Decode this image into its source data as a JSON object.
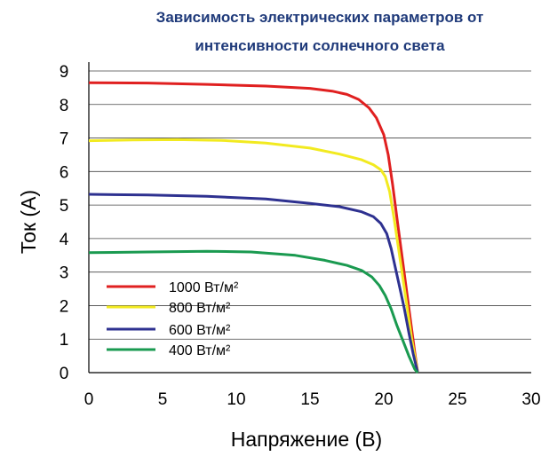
{
  "chart_data": {
    "type": "line",
    "title": [
      "Зависимость электрических параметров от",
      "интенсивности солнечного света"
    ],
    "xlabel": "Напряжение (В)",
    "ylabel": "Ток (А)",
    "xlim": [
      0,
      30
    ],
    "ylim": [
      0,
      9
    ],
    "x_ticks": [
      0,
      5,
      10,
      15,
      20,
      25,
      30
    ],
    "y_ticks": [
      0,
      1,
      2,
      3,
      4,
      5,
      6,
      7,
      8,
      9
    ],
    "grid": "horizontal",
    "legend_position": "bottom-left",
    "series": [
      {
        "name": "1000 Вт/м²",
        "color": "#e02020",
        "points": [
          [
            0,
            8.65
          ],
          [
            4,
            8.64
          ],
          [
            8,
            8.6
          ],
          [
            12,
            8.55
          ],
          [
            15,
            8.48
          ],
          [
            16.5,
            8.4
          ],
          [
            17.5,
            8.3
          ],
          [
            18.3,
            8.15
          ],
          [
            19,
            7.9
          ],
          [
            19.5,
            7.6
          ],
          [
            20,
            7.1
          ],
          [
            20.3,
            6.5
          ],
          [
            20.6,
            5.6
          ],
          [
            20.9,
            4.6
          ],
          [
            21.2,
            3.6
          ],
          [
            21.5,
            2.6
          ],
          [
            21.8,
            1.6
          ],
          [
            22.1,
            0.6
          ],
          [
            22.3,
            0
          ]
        ]
      },
      {
        "name": "800 Вт/м²",
        "color": "#f2ea20",
        "points": [
          [
            0,
            6.92
          ],
          [
            3,
            6.94
          ],
          [
            6,
            6.95
          ],
          [
            9,
            6.93
          ],
          [
            12,
            6.85
          ],
          [
            15,
            6.7
          ],
          [
            17,
            6.52
          ],
          [
            18.5,
            6.35
          ],
          [
            19.3,
            6.2
          ],
          [
            19.8,
            6.05
          ],
          [
            20.1,
            5.85
          ],
          [
            20.4,
            5.4
          ],
          [
            20.7,
            4.6
          ],
          [
            21,
            3.7
          ],
          [
            21.3,
            2.8
          ],
          [
            21.6,
            1.9
          ],
          [
            21.9,
            1.0
          ],
          [
            22.3,
            0
          ]
        ]
      },
      {
        "name": "600 Вт/м²",
        "color": "#2e3190",
        "points": [
          [
            0,
            5.32
          ],
          [
            4,
            5.3
          ],
          [
            8,
            5.26
          ],
          [
            12,
            5.18
          ],
          [
            15,
            5.05
          ],
          [
            17,
            4.95
          ],
          [
            18.5,
            4.8
          ],
          [
            19.3,
            4.65
          ],
          [
            19.8,
            4.45
          ],
          [
            20.2,
            4.15
          ],
          [
            20.5,
            3.7
          ],
          [
            20.8,
            3.1
          ],
          [
            21.1,
            2.5
          ],
          [
            21.4,
            1.9
          ],
          [
            21.7,
            1.2
          ],
          [
            22,
            0.55
          ],
          [
            22.3,
            0
          ]
        ]
      },
      {
        "name": "400 Вт/м²",
        "color": "#1a9a50",
        "points": [
          [
            0,
            3.58
          ],
          [
            4,
            3.6
          ],
          [
            8,
            3.62
          ],
          [
            11,
            3.6
          ],
          [
            14,
            3.5
          ],
          [
            16,
            3.35
          ],
          [
            17.5,
            3.2
          ],
          [
            18.5,
            3.05
          ],
          [
            19.2,
            2.85
          ],
          [
            19.7,
            2.6
          ],
          [
            20.1,
            2.3
          ],
          [
            20.5,
            1.9
          ],
          [
            20.9,
            1.4
          ],
          [
            21.3,
            0.95
          ],
          [
            21.7,
            0.5
          ],
          [
            22.1,
            0.1
          ],
          [
            22.3,
            0
          ]
        ]
      }
    ]
  }
}
